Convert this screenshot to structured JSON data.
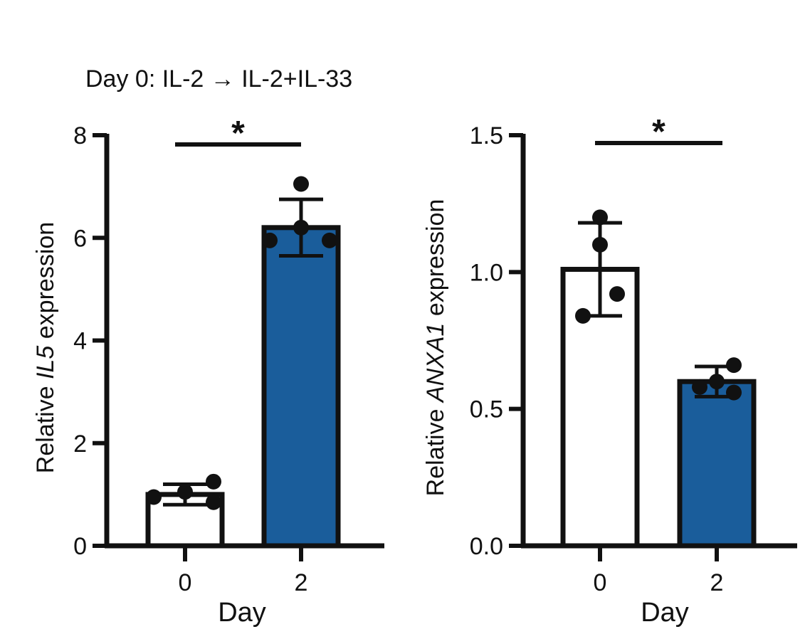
{
  "figure_title": "Day 0: IL-2 → IL-2+IL-33",
  "colors": {
    "bar_open": "#ffffff",
    "bar_filled": "#1a5d9b",
    "stroke": "#111111",
    "point": "#111111"
  },
  "chart_data": [
    {
      "type": "bar",
      "panel": "left",
      "categories": [
        "0",
        "2"
      ],
      "values": [
        1.0,
        6.2
      ],
      "error": [
        0.2,
        0.55
      ],
      "points": [
        [
          0.95,
          1.05,
          1.25,
          0.85
        ],
        [
          7.05,
          6.2,
          5.95,
          5.95
        ]
      ],
      "bar_fill": [
        "#ffffff",
        "#1a5d9b"
      ],
      "xlabel": "Day",
      "ylabel_prefix": "Relative ",
      "ylabel_gene": "IL5",
      "ylabel_suffix": " expression",
      "ylim": [
        0,
        8
      ],
      "yticks": [
        "0",
        "2",
        "4",
        "6",
        "8"
      ],
      "significance": "*",
      "grid": false
    },
    {
      "type": "bar",
      "panel": "right",
      "categories": [
        "0",
        "2"
      ],
      "values": [
        1.01,
        0.6
      ],
      "error": [
        0.17,
        0.055
      ],
      "points": [
        [
          0.84,
          1.1,
          0.92,
          1.2
        ],
        [
          0.58,
          0.6,
          0.66,
          0.56
        ]
      ],
      "bar_fill": [
        "#ffffff",
        "#1a5d9b"
      ],
      "xlabel": "Day",
      "ylabel_prefix": "Relative ",
      "ylabel_gene": "ANXA1",
      "ylabel_suffix": " expression",
      "ylim": [
        0,
        1.5
      ],
      "yticks": [
        "0.0",
        "0.5",
        "1.0",
        "1.5"
      ],
      "significance": "*",
      "grid": false
    }
  ]
}
